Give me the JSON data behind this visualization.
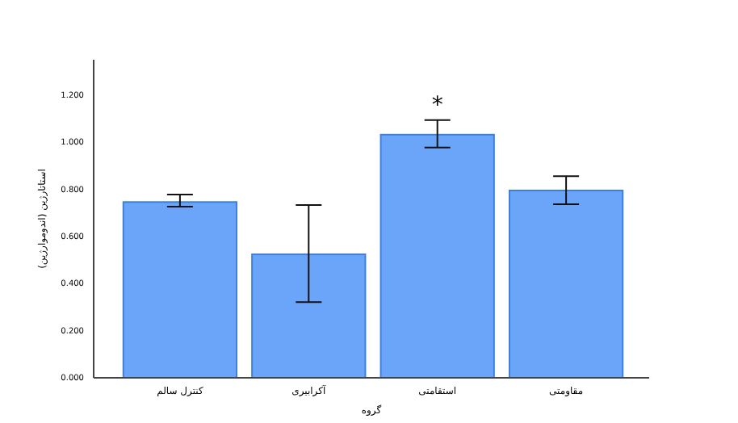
{
  "chart_data": {
    "type": "bar",
    "xlabel": "گروه",
    "ylabel": "استاتارژین (اندوموارژین)",
    "categories": [
      "کنترل سالم",
      "آکرابیری",
      "استقامتی",
      "مقاومتی"
    ],
    "values": [
      0.746,
      0.524,
      1.032,
      0.795
    ],
    "errors": [
      [
        0.726,
        0.778
      ],
      [
        0.321,
        0.733
      ],
      [
        0.977,
        1.094
      ],
      [
        0.737,
        0.856
      ]
    ],
    "color": "#6aa5fa",
    "ylim": [
      0,
      1.35
    ],
    "yticks": [
      {
        "value": 0,
        "label": "0.000"
      },
      {
        "value": 0.2,
        "label": "0.200"
      },
      {
        "value": 0.4,
        "label": "0.400"
      },
      {
        "value": 0.6,
        "label": "0.600"
      },
      {
        "value": 0.8,
        "label": "0.800"
      },
      {
        "value": 1,
        "label": "1.000"
      },
      {
        "value": 1.2,
        "label": "1.200"
      }
    ],
    "annotations": [
      "*"
    ],
    "grid": false
  }
}
